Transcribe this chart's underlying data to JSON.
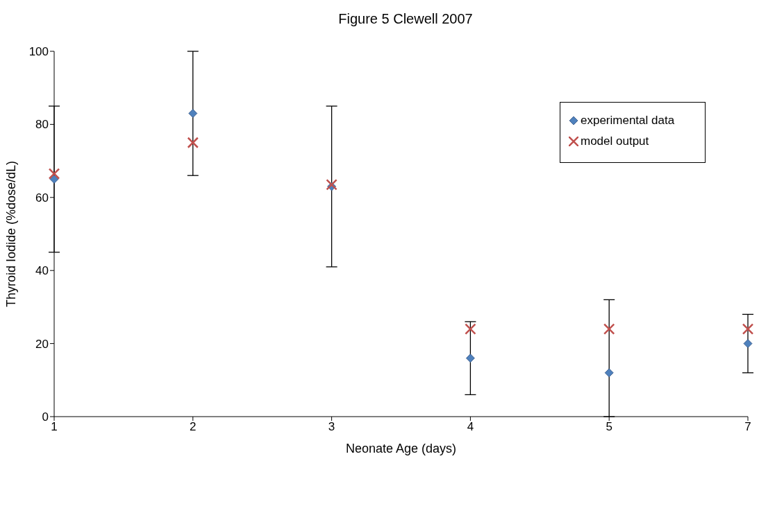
{
  "chart_data": {
    "type": "scatter",
    "title": "Figure 5 Clewell 2007",
    "xlabel": "Neonate Age (days)",
    "ylabel": "Thyroid Iodide (%dose/dL)",
    "categories": [
      "1",
      "2",
      "3",
      "4",
      "5",
      "7"
    ],
    "series": [
      {
        "name": "experimental data",
        "color": "#4f81bd",
        "marker": "diamond",
        "values": [
          65,
          83,
          63,
          16,
          12,
          20
        ],
        "errors": [
          [
            45,
            85
          ],
          [
            66,
            100
          ],
          [
            41,
            85
          ],
          [
            6,
            26
          ],
          [
            0,
            32
          ],
          [
            12,
            28
          ]
        ]
      },
      {
        "name": "model output",
        "color": "#c0504d",
        "marker": "cross",
        "values": [
          66.5,
          75,
          63.5,
          24,
          24,
          24
        ]
      }
    ],
    "ylim": [
      0,
      100
    ],
    "yticks": [
      0,
      20,
      40,
      60,
      80,
      100
    ],
    "grid": false,
    "legend": "top right"
  }
}
